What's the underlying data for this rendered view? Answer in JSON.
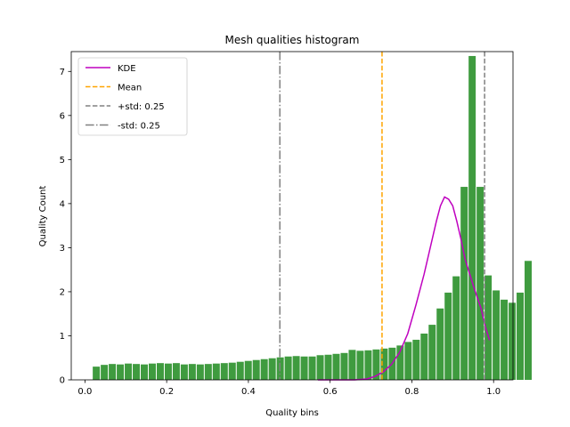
{
  "chart_data": {
    "type": "bar",
    "title": "Mesh qualities histogram",
    "xlabel": "Quality bins",
    "ylabel": "Quality Count",
    "xlim": [
      -0.0335,
      1.0475
    ],
    "ylim": [
      0,
      7.45
    ],
    "xticks": [
      0.0,
      0.2,
      0.4,
      0.6,
      0.8,
      1.0
    ],
    "xtick_labels": [
      "0.0",
      "0.2",
      "0.4",
      "0.6",
      "0.8",
      "1.0"
    ],
    "yticks": [
      0,
      1,
      2,
      3,
      4,
      5,
      6,
      7
    ],
    "ytick_labels": [
      "0",
      "1",
      "2",
      "3",
      "4",
      "5",
      "6",
      "7"
    ],
    "grid": false,
    "legend_position": "top-left",
    "bar_color": "#3f9b3f",
    "bins": {
      "start": 0.018,
      "width": 0.01957,
      "values": [
        0.3,
        0.34,
        0.36,
        0.35,
        0.37,
        0.36,
        0.35,
        0.37,
        0.38,
        0.37,
        0.38,
        0.35,
        0.36,
        0.35,
        0.36,
        0.37,
        0.38,
        0.39,
        0.41,
        0.43,
        0.45,
        0.47,
        0.49,
        0.51,
        0.53,
        0.54,
        0.53,
        0.53,
        0.56,
        0.57,
        0.59,
        0.61,
        0.68,
        0.66,
        0.67,
        0.69,
        0.71,
        0.73,
        0.78,
        0.86,
        0.91,
        1.05,
        1.25,
        1.62,
        1.98,
        2.35,
        4.38,
        7.35,
        4.38,
        2.37,
        2.03,
        1.82,
        1.75,
        1.98,
        2.7
      ]
    },
    "kde": {
      "name": "KDE",
      "color": "#bf00bf",
      "x": [
        0.57,
        0.6,
        0.63,
        0.66,
        0.69,
        0.71,
        0.73,
        0.75,
        0.77,
        0.79,
        0.81,
        0.83,
        0.85,
        0.86,
        0.87,
        0.88,
        0.89,
        0.9,
        0.91,
        0.92,
        0.93,
        0.95,
        0.97,
        0.98,
        0.99
      ],
      "y": [
        0.0,
        0.0,
        0.0,
        0.0,
        0.02,
        0.08,
        0.18,
        0.35,
        0.62,
        1.05,
        1.7,
        2.4,
        3.2,
        3.6,
        3.95,
        4.15,
        4.1,
        3.95,
        3.6,
        3.2,
        2.75,
        2.15,
        1.6,
        1.2,
        0.9
      ]
    },
    "vlines": [
      {
        "name": "Mean",
        "x": 0.727,
        "color": "#ffa500",
        "dash": "dashed"
      },
      {
        "name": "+std: 0.25",
        "x": 0.978,
        "color": "#808080",
        "dash": "dashed"
      },
      {
        "name": "-std: 0.25",
        "x": 0.477,
        "color": "#808080",
        "dash": "dashdot"
      }
    ],
    "legend": [
      "KDE",
      "Mean",
      "+std: 0.25",
      "-std: 0.25"
    ]
  }
}
